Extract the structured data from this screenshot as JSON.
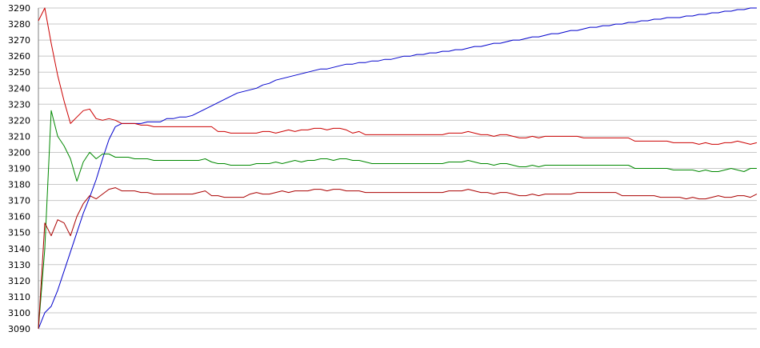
{
  "chart_data": {
    "type": "line",
    "title": "",
    "xlabel": "",
    "ylabel": "",
    "ylim": [
      3090,
      3290
    ],
    "yticks": [
      "3290",
      "3280",
      "3270",
      "3260",
      "3250",
      "3240",
      "3230",
      "3220",
      "3210",
      "3200",
      "3190",
      "3180",
      "3170",
      "3160",
      "3150",
      "3140",
      "3130",
      "3120",
      "3110",
      "3100",
      "3090"
    ],
    "grid": true,
    "legend": "none",
    "x": [
      0,
      1,
      2,
      3,
      4,
      5,
      6,
      7,
      8,
      9,
      10,
      11,
      12,
      13,
      14,
      15,
      16,
      17,
      18,
      19,
      20,
      21,
      22,
      23,
      24,
      25,
      26,
      27,
      28,
      29,
      30,
      31,
      32,
      33,
      34,
      35,
      36,
      37,
      38,
      39,
      40,
      41,
      42,
      43,
      44,
      45,
      46,
      47,
      48,
      49,
      50,
      51,
      52,
      53,
      54,
      55,
      56,
      57,
      58,
      59,
      60,
      61,
      62,
      63,
      64,
      65,
      66,
      67,
      68,
      69,
      70,
      71,
      72,
      73,
      74,
      75,
      76,
      77,
      78,
      79,
      80,
      81,
      82,
      83,
      84,
      85,
      86,
      87,
      88,
      89,
      90,
      91,
      92,
      93,
      94,
      95,
      96,
      97,
      98,
      99,
      100,
      101,
      102,
      103,
      104,
      105,
      106,
      107,
      108,
      109,
      110,
      111,
      112
    ],
    "series": [
      {
        "color": "#0000cc",
        "values": [
          3090,
          3100,
          3104,
          3114,
          3126,
          3138,
          3150,
          3162,
          3172,
          3183,
          3196,
          3208,
          3216,
          3218,
          3218,
          3218,
          3218,
          3219,
          3219,
          3219,
          3221,
          3221,
          3222,
          3222,
          3223,
          3225,
          3227,
          3229,
          3231,
          3233,
          3235,
          3237,
          3238,
          3239,
          3240,
          3242,
          3243,
          3245,
          3246,
          3247,
          3248,
          3249,
          3250,
          3251,
          3252,
          3252,
          3253,
          3254,
          3255,
          3255,
          3256,
          3256,
          3257,
          3257,
          3258,
          3258,
          3259,
          3260,
          3260,
          3261,
          3261,
          3262,
          3262,
          3263,
          3263,
          3264,
          3264,
          3265,
          3266,
          3266,
          3267,
          3268,
          3268,
          3269,
          3270,
          3270,
          3271,
          3272,
          3272,
          3273,
          3274,
          3274,
          3275,
          3276,
          3276,
          3277,
          3278,
          3278,
          3279,
          3279,
          3280,
          3280,
          3281,
          3281,
          3282,
          3282,
          3283,
          3283,
          3284,
          3284,
          3284,
          3285,
          3285,
          3286,
          3286,
          3287,
          3287,
          3288,
          3288,
          3289,
          3289,
          3290,
          3290
        ]
      },
      {
        "color": "#cc0000",
        "values": [
          3282,
          3290,
          3268,
          3248,
          3232,
          3218,
          3222,
          3226,
          3227,
          3221,
          3220,
          3221,
          3220,
          3218,
          3218,
          3218,
          3217,
          3217,
          3216,
          3216,
          3216,
          3216,
          3216,
          3216,
          3216,
          3216,
          3216,
          3216,
          3213,
          3213,
          3212,
          3212,
          3212,
          3212,
          3212,
          3213,
          3213,
          3212,
          3213,
          3214,
          3213,
          3214,
          3214,
          3215,
          3215,
          3214,
          3215,
          3215,
          3214,
          3212,
          3213,
          3211,
          3211,
          3211,
          3211,
          3211,
          3211,
          3211,
          3211,
          3211,
          3211,
          3211,
          3211,
          3211,
          3212,
          3212,
          3212,
          3213,
          3212,
          3211,
          3211,
          3210,
          3211,
          3211,
          3210,
          3209,
          3209,
          3210,
          3209,
          3210,
          3210,
          3210,
          3210,
          3210,
          3210,
          3209,
          3209,
          3209,
          3209,
          3209,
          3209,
          3209,
          3209,
          3207,
          3207,
          3207,
          3207,
          3207,
          3207,
          3206,
          3206,
          3206,
          3206,
          3205,
          3206,
          3205,
          3205,
          3206,
          3206,
          3207,
          3206,
          3205,
          3206
        ]
      },
      {
        "color": "#008800",
        "values": [
          3090,
          3140,
          3226,
          3210,
          3204,
          3196,
          3182,
          3194,
          3200,
          3196,
          3199,
          3199,
          3197,
          3197,
          3197,
          3196,
          3196,
          3196,
          3195,
          3195,
          3195,
          3195,
          3195,
          3195,
          3195,
          3195,
          3196,
          3194,
          3193,
          3193,
          3192,
          3192,
          3192,
          3192,
          3193,
          3193,
          3193,
          3194,
          3193,
          3194,
          3195,
          3194,
          3195,
          3195,
          3196,
          3196,
          3195,
          3196,
          3196,
          3195,
          3195,
          3194,
          3193,
          3193,
          3193,
          3193,
          3193,
          3193,
          3193,
          3193,
          3193,
          3193,
          3193,
          3193,
          3194,
          3194,
          3194,
          3195,
          3194,
          3193,
          3193,
          3192,
          3193,
          3193,
          3192,
          3191,
          3191,
          3192,
          3191,
          3192,
          3192,
          3192,
          3192,
          3192,
          3192,
          3192,
          3192,
          3192,
          3192,
          3192,
          3192,
          3192,
          3192,
          3190,
          3190,
          3190,
          3190,
          3190,
          3190,
          3189,
          3189,
          3189,
          3189,
          3188,
          3189,
          3188,
          3188,
          3189,
          3190,
          3189,
          3188,
          3190,
          3190
        ]
      },
      {
        "color": "#aa0000",
        "values": [
          3090,
          3156,
          3148,
          3158,
          3156,
          3148,
          3160,
          3168,
          3173,
          3171,
          3174,
          3177,
          3178,
          3176,
          3176,
          3176,
          3175,
          3175,
          3174,
          3174,
          3174,
          3174,
          3174,
          3174,
          3174,
          3175,
          3176,
          3173,
          3173,
          3172,
          3172,
          3172,
          3172,
          3174,
          3175,
          3174,
          3174,
          3175,
          3176,
          3175,
          3176,
          3176,
          3176,
          3177,
          3177,
          3176,
          3177,
          3177,
          3176,
          3176,
          3176,
          3175,
          3175,
          3175,
          3175,
          3175,
          3175,
          3175,
          3175,
          3175,
          3175,
          3175,
          3175,
          3175,
          3176,
          3176,
          3176,
          3177,
          3176,
          3175,
          3175,
          3174,
          3175,
          3175,
          3174,
          3173,
          3173,
          3174,
          3173,
          3174,
          3174,
          3174,
          3174,
          3174,
          3175,
          3175,
          3175,
          3175,
          3175,
          3175,
          3175,
          3173,
          3173,
          3173,
          3173,
          3173,
          3173,
          3172,
          3172,
          3172,
          3172,
          3171,
          3172,
          3171,
          3171,
          3172,
          3173,
          3172,
          3172,
          3173,
          3173,
          3172,
          3174
        ]
      }
    ]
  }
}
